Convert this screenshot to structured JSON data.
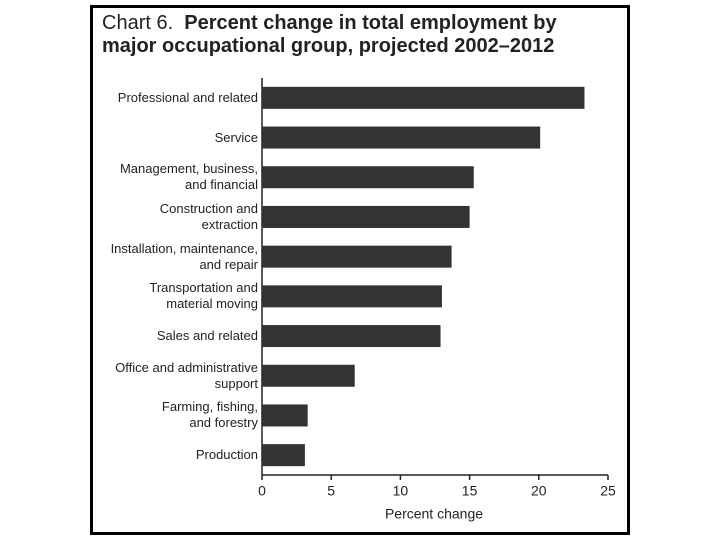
{
  "chart_data": {
    "type": "barh",
    "label": "Chart 6.",
    "title": "Percent change in total employment by major occupational group, projected 2002–2012",
    "x_label": "Percent change",
    "categories": [
      "Professional and related",
      "Service",
      "Management, business,\nand financial",
      "Construction and\nextraction",
      "Installation, maintenance,\nand repair",
      "Transportation and\nmaterial moving",
      "Sales and related",
      "Office and administrative\nsupport",
      "Farming, fishing,\nand forestry",
      "Production"
    ],
    "values": [
      23.3,
      20.1,
      15.3,
      15.0,
      13.7,
      13.0,
      12.9,
      6.7,
      3.3,
      3.1
    ],
    "color": "#333333",
    "xlim": [
      0,
      25
    ],
    "xticks": [
      0,
      5,
      10,
      15,
      20,
      25
    ]
  }
}
